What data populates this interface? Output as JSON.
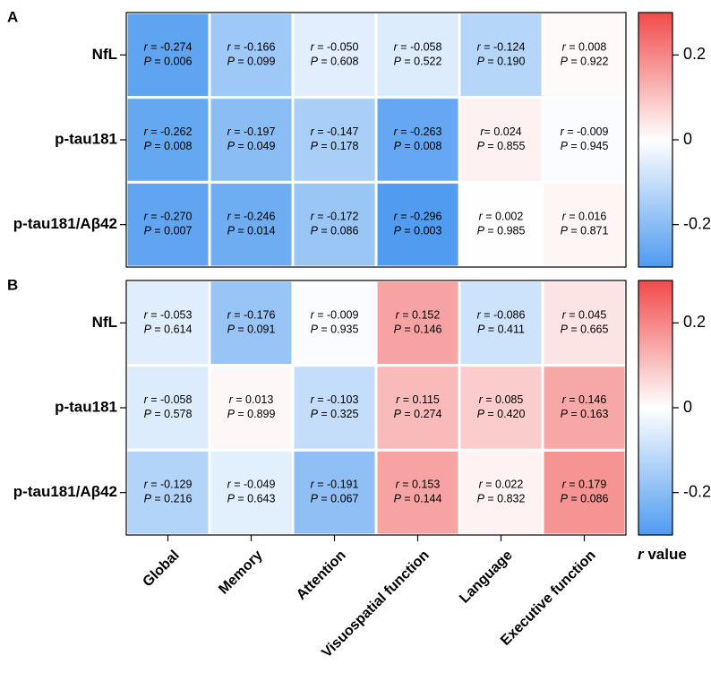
{
  "chart_data": [
    {
      "type": "heatmap",
      "panel_label": "A",
      "rows": [
        "NfL",
        "p-tau181",
        "p-tau181/Aβ42"
      ],
      "columns": [
        "Global",
        "Memory",
        "Attention",
        "Visuospatial function",
        "Language",
        "Executive function"
      ],
      "r_values": [
        [
          -0.274,
          -0.166,
          -0.05,
          -0.058,
          -0.124,
          0.008
        ],
        [
          -0.262,
          -0.197,
          -0.147,
          -0.263,
          0.024,
          -0.009
        ],
        [
          -0.27,
          -0.246,
          -0.172,
          -0.296,
          0.002,
          0.016
        ]
      ],
      "r_labels": [
        [
          "-0.274",
          "-0.166",
          "-0.050",
          "-0.058",
          "-0.124",
          "0.008"
        ],
        [
          "-0.262",
          "-0.197",
          "-0.147",
          "-0.263",
          "0.024",
          "-0.009"
        ],
        [
          "-0.270",
          "-0.246",
          "-0.172",
          "-0.296",
          "0.002",
          "0.016"
        ]
      ],
      "p_labels": [
        [
          "0.006",
          "0.099",
          "0.608",
          "0.522",
          "0.190",
          "0.922"
        ],
        [
          "0.008",
          "0.049",
          "0.178",
          "0.008",
          "0.855",
          "0.945"
        ],
        [
          "0.007",
          "0.014",
          "0.086",
          "0.003",
          "0.985",
          "0.871"
        ]
      ],
      "r_separators": [
        [
          " = ",
          " = ",
          " = ",
          " = ",
          " = ",
          " = "
        ],
        [
          " = ",
          " = ",
          " = ",
          " = ",
          "= ",
          " = "
        ],
        [
          " = ",
          " = ",
          " = ",
          " = ",
          " = ",
          " = "
        ]
      ],
      "colorbar": {
        "ticks": [
          0.2,
          0,
          -0.2
        ],
        "tick_labels": [
          "0.2",
          "0",
          "-0.2"
        ],
        "range": [
          -0.3,
          0.3
        ]
      }
    },
    {
      "type": "heatmap",
      "panel_label": "B",
      "rows": [
        "NfL",
        "p-tau181",
        "p-tau181/Aβ42"
      ],
      "columns": [
        "Global",
        "Memory",
        "Attention",
        "Visuospatial function",
        "Language",
        "Executive function"
      ],
      "r_values": [
        [
          -0.053,
          -0.176,
          -0.009,
          0.152,
          -0.086,
          0.045
        ],
        [
          -0.058,
          0.013,
          -0.103,
          0.115,
          0.085,
          0.146
        ],
        [
          -0.129,
          -0.049,
          -0.191,
          0.153,
          0.022,
          0.179
        ]
      ],
      "r_labels": [
        [
          "-0.053",
          "-0.176",
          "-0.009",
          "0.152",
          "-0.086",
          "0.045"
        ],
        [
          "-0.058",
          "0.013",
          "-0.103",
          "0.115",
          "0.085",
          "0.146"
        ],
        [
          "-0.129",
          "-0.049",
          "-0.191",
          "0.153",
          "0.022",
          "0.179"
        ]
      ],
      "p_labels": [
        [
          "0.614",
          "0.091",
          "0.935",
          "0.146",
          "0.411",
          "0.665"
        ],
        [
          "0.578",
          "0.899",
          "0.325",
          "0.274",
          "0.420",
          "0.163"
        ],
        [
          "0.216",
          "0.643",
          "0.067",
          "0.144",
          "0.832",
          "0.086"
        ]
      ],
      "r_separators": [
        [
          " = ",
          " = ",
          " = ",
          " = ",
          " = ",
          " = "
        ],
        [
          " = ",
          " = ",
          " = ",
          " = ",
          " = ",
          " = "
        ],
        [
          " = ",
          " = ",
          " = ",
          " = ",
          " = ",
          " = "
        ]
      ],
      "colorbar": {
        "ticks": [
          0.2,
          0,
          -0.2
        ],
        "tick_labels": [
          "0.2",
          "0",
          "-0.2"
        ],
        "range": [
          -0.3,
          0.3
        ]
      }
    }
  ],
  "legend_title_symbol": "r",
  "legend_title_text": " value",
  "cell_r_symbol": "r",
  "cell_p_symbol": "P",
  "cell_p_separator": " = ",
  "colors": {
    "negative": "#4f9bf0",
    "neutral": "#ffffff",
    "positive": "#f04a4a"
  }
}
